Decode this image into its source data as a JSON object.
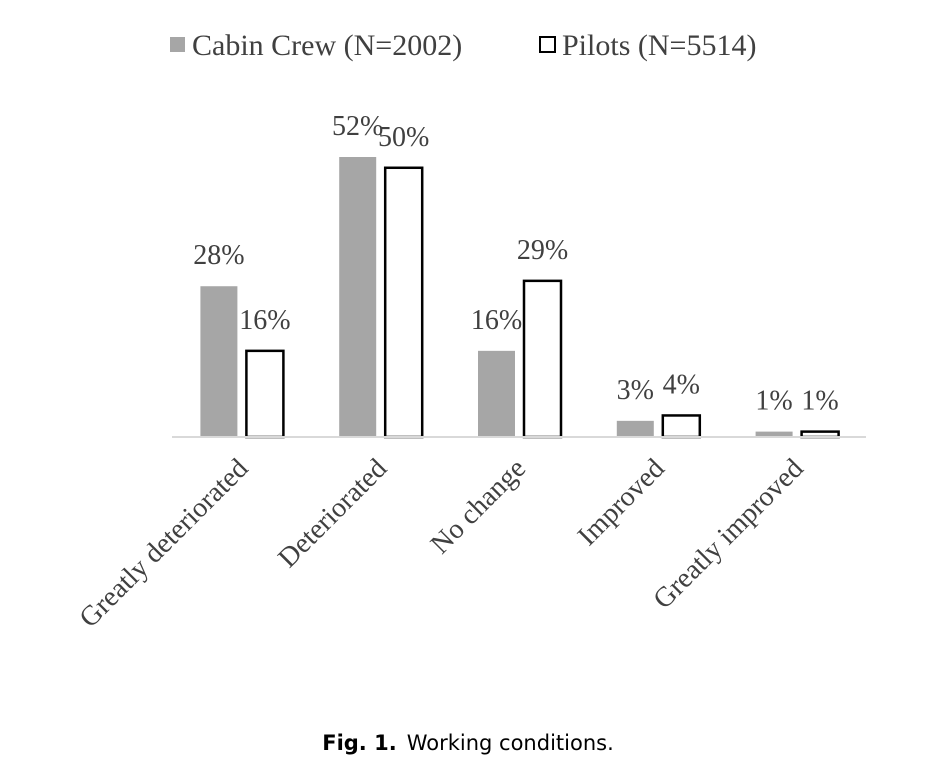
{
  "chart_data": {
    "type": "bar",
    "categories": [
      "Greatly deteriorated",
      "Deteriorated",
      "No change",
      "Improved",
      "Greatly improved"
    ],
    "series": [
      {
        "name": "Cabin Crew (N=2002)",
        "color": "#a6a6a6",
        "values": [
          28,
          52,
          16,
          3,
          1
        ],
        "value_labels": [
          "28%",
          "52%",
          "16%",
          "3%",
          "1%"
        ]
      },
      {
        "name": "Pilots (N=5514)",
        "color": "#ffffff",
        "edgecolor": "#000000",
        "values": [
          16,
          50,
          29,
          4,
          1
        ],
        "value_labels": [
          "16%",
          "50%",
          "29%",
          "4%",
          "1%"
        ]
      }
    ],
    "legend": "top"
  },
  "caption": {
    "label": "Fig. 1.",
    "text": "Working conditions."
  }
}
